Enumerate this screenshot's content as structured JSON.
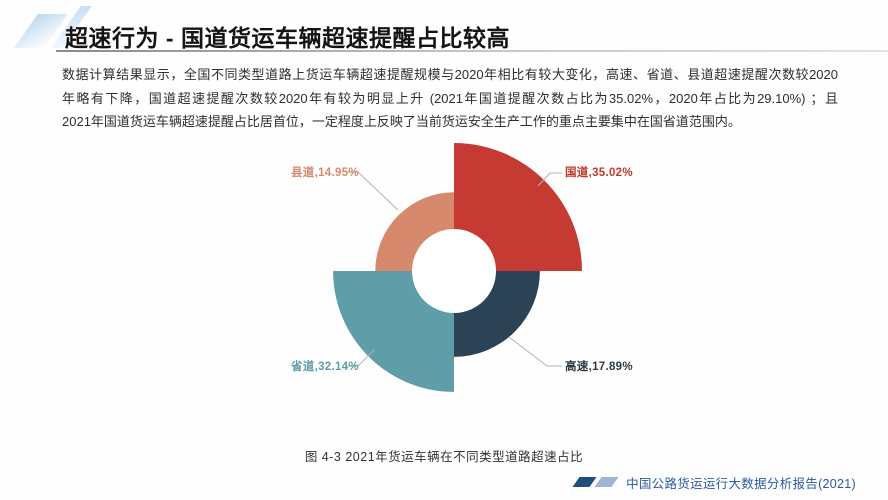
{
  "header": {
    "title": "超速行为 - 国道货运车辆超速提醒占比较高"
  },
  "body": {
    "lines": [
      "数据计算结果显示，全国不同类型道路上货运车辆超速提醒规模与2020年相比有较大变化，高速、省道、县道超速提醒次数较2020",
      "年略有下降，国道超速提醒次数较2020年有较为明显上升 (2021年国道提醒次数占比为35.02%，2020年占比为29.10%) ；且",
      "2021年国道货运车辆超速提醒占比居首位，一定程度上反映了当前货运安全生产工作的重点主要集中在国省道范围内。"
    ]
  },
  "chart_data": {
    "type": "pie",
    "variant": "quarter-rose-donut",
    "title": "图 4-3 2021年货运车辆在不同类型道路超速占比",
    "unit": "%",
    "equal_angles": true,
    "start_angle_deg": 0,
    "legend_position": "none",
    "segments": [
      {
        "label": "国道",
        "value": 35.02,
        "display": "国道,35.02%",
        "color": "#c53a32",
        "label_color": "#c0392b"
      },
      {
        "label": "高速",
        "value": 17.89,
        "display": "高速,17.89%",
        "color": "#2c4355",
        "label_color": "#2f3a44"
      },
      {
        "label": "省道",
        "value": 32.14,
        "display": "省道,32.14%",
        "color": "#5f9ea9",
        "label_color": "#5f9ea9"
      },
      {
        "label": "县道",
        "value": 14.95,
        "display": "县道,14.95%",
        "color": "#d6896d",
        "label_color": "#d6896d"
      }
    ],
    "leader_line_color": "#b3b3b3",
    "hole_color": "#ffffff"
  },
  "footer": {
    "text": "中国公路货运运行大数据分析报告(2021)",
    "text_color": "#2b5b9e",
    "marks": [
      "#1f4e79",
      "#9fb7d6"
    ]
  }
}
